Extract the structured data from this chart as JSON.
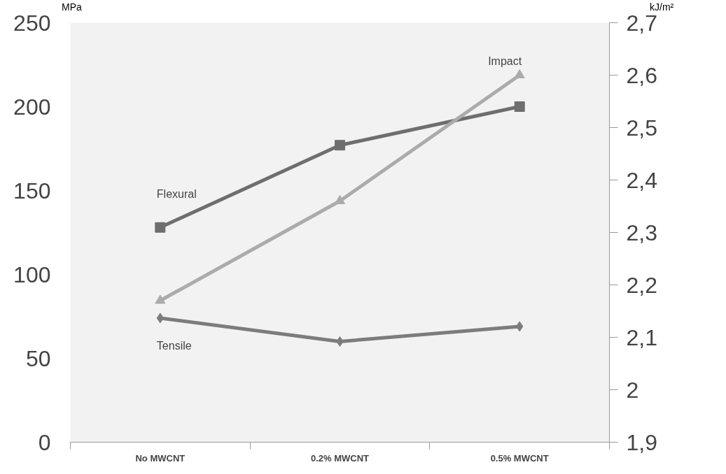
{
  "chart_data": {
    "type": "line",
    "ylabel": "MPa",
    "y2label": "kJ/m²",
    "categories": [
      "No MWCNT",
      "0.2% MWCNT",
      "0.5% MWCNT"
    ],
    "series": [
      {
        "name": "Flexural",
        "color": "#6e6e6e",
        "values": [
          128,
          177,
          200
        ],
        "marker": "square"
      },
      {
        "name": "Tensile",
        "color": "#7c7c7c",
        "values": [
          74,
          60,
          69
        ],
        "marker": "diamond"
      },
      {
        "name": "Impact",
        "color": "#ababab",
        "values": [
          2.17,
          2.36,
          2.6
        ],
        "marker": "triangle",
        "axis": "y2"
      }
    ],
    "ylim": [
      0,
      250
    ],
    "yticks": [
      0,
      50,
      100,
      150,
      200,
      250
    ],
    "y2lim": [
      1.9,
      2.7
    ],
    "y2ticks": [
      {
        "value": 1.9,
        "label": "1,9"
      },
      {
        "value": 2.0,
        "label": "2"
      },
      {
        "value": 2.1,
        "label": "2,1"
      },
      {
        "value": 2.2,
        "label": "2,2"
      },
      {
        "value": 2.3,
        "label": "2,3"
      },
      {
        "value": 2.4,
        "label": "2,4"
      },
      {
        "value": 2.5,
        "label": "2,5"
      },
      {
        "value": 2.6,
        "label": "2,6"
      },
      {
        "value": 2.7,
        "label": "2,7"
      }
    ],
    "grid": false
  }
}
